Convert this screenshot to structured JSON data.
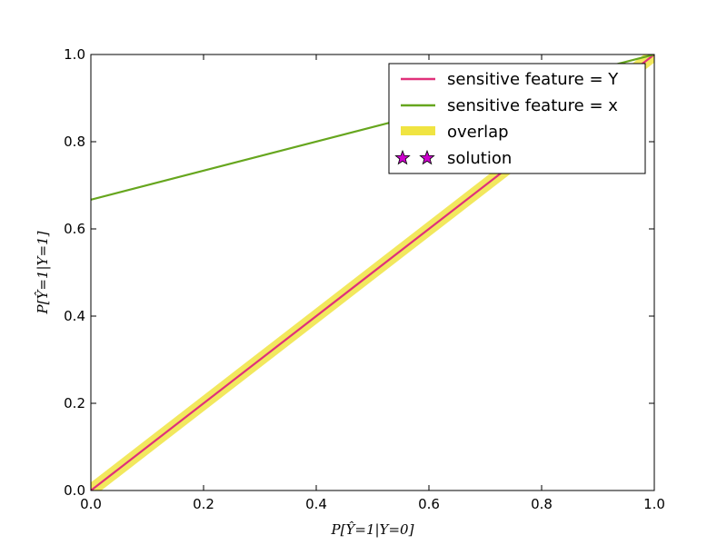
{
  "chart_data": {
    "type": "line",
    "xlabel": "P[Ŷ=1|Y=0]",
    "ylabel": "P[Ŷ=1|Y=1]",
    "xlim": [
      0.0,
      1.0
    ],
    "ylim": [
      0.0,
      1.0
    ],
    "xticks": [
      "0.0",
      "0.2",
      "0.4",
      "0.6",
      "0.8",
      "1.0"
    ],
    "yticks": [
      "0.0",
      "0.2",
      "0.4",
      "0.6",
      "0.8",
      "1.0"
    ],
    "grid": false,
    "legend_position": "top-right",
    "series": [
      {
        "name": "sensitive feature = Y",
        "color": "#e0307a",
        "points": [
          [
            0.0,
            0.0
          ],
          [
            1.0,
            1.0
          ]
        ]
      },
      {
        "name": "sensitive feature = x",
        "color": "#66a61e",
        "points": [
          [
            0.0,
            0.667
          ],
          [
            1.0,
            1.0
          ]
        ]
      }
    ],
    "overlap": {
      "name": "overlap",
      "color": "#f0e442",
      "points": [
        [
          0.0,
          0.0
        ],
        [
          1.0,
          1.0
        ]
      ]
    },
    "solution": {
      "name": "solution",
      "color": "#cc00cc",
      "marker": "star-icon",
      "points": []
    }
  }
}
